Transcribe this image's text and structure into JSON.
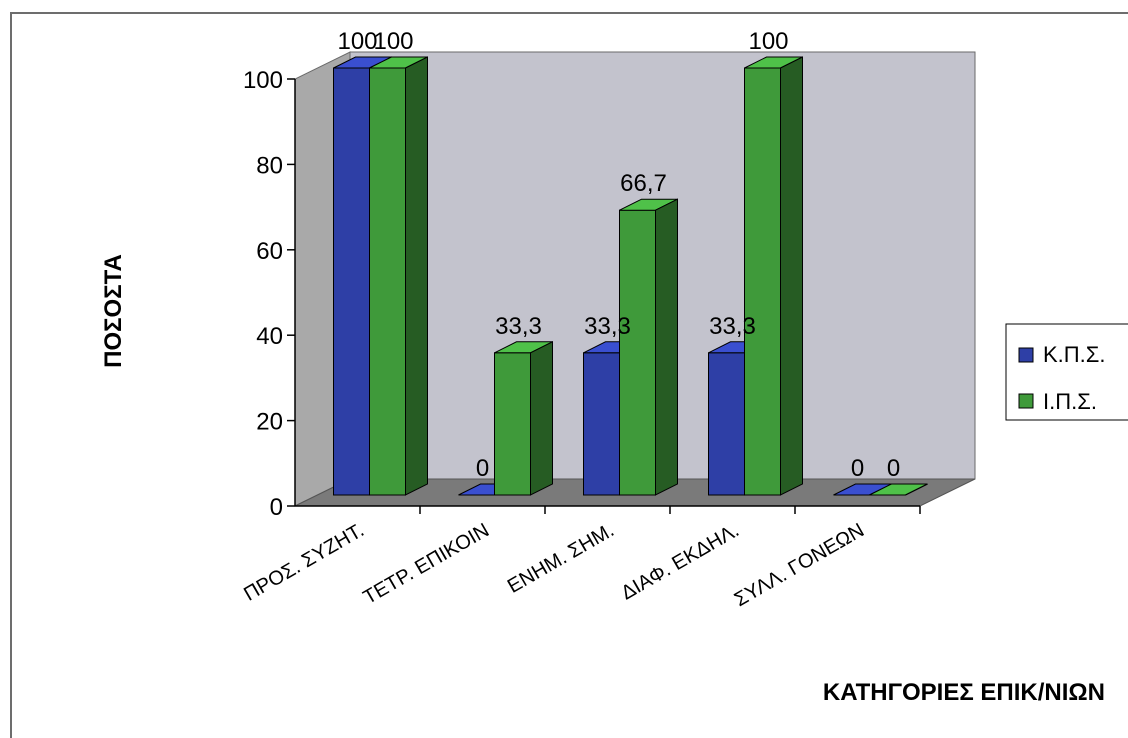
{
  "chart_data": {
    "type": "bar",
    "title": "",
    "xlabel": "ΚΑΤΗΓΟΡΙΕΣ ΕΠΙΚ/ΝΙΩΝ",
    "ylabel": "ΠΟΣΟΣΤΑ",
    "ylim": [
      0,
      100
    ],
    "yticks": [
      "0",
      "20",
      "40",
      "60",
      "80",
      "100"
    ],
    "categories": [
      "ΠΡΟΣ. ΣΥΖΗΤ.",
      "ΤΕΤΡ. ΕΠΙΚΟΙΝ",
      "ΕΝΗΜ. ΣΗΜ.",
      "ΔΙΑΦ. ΕΚΔΗΛ.",
      "ΣΥΛΛ. ΓΟΝΕΩΝ"
    ],
    "series": [
      {
        "name": "Κ.Π.Σ.",
        "color": "#2e3fa6",
        "values": [
          100,
          0,
          33.3,
          33.3,
          0
        ],
        "labels": [
          "100",
          "0",
          "33,3",
          "33,3",
          "0"
        ]
      },
      {
        "name": "Ι.Π.Σ.",
        "color": "#3f9a3a",
        "values": [
          100,
          33.3,
          66.7,
          100,
          0
        ],
        "labels": [
          "100",
          "33,3",
          "66,7",
          "100",
          "0"
        ]
      }
    ],
    "legend": "right",
    "grid": false,
    "style": "3d-column"
  }
}
